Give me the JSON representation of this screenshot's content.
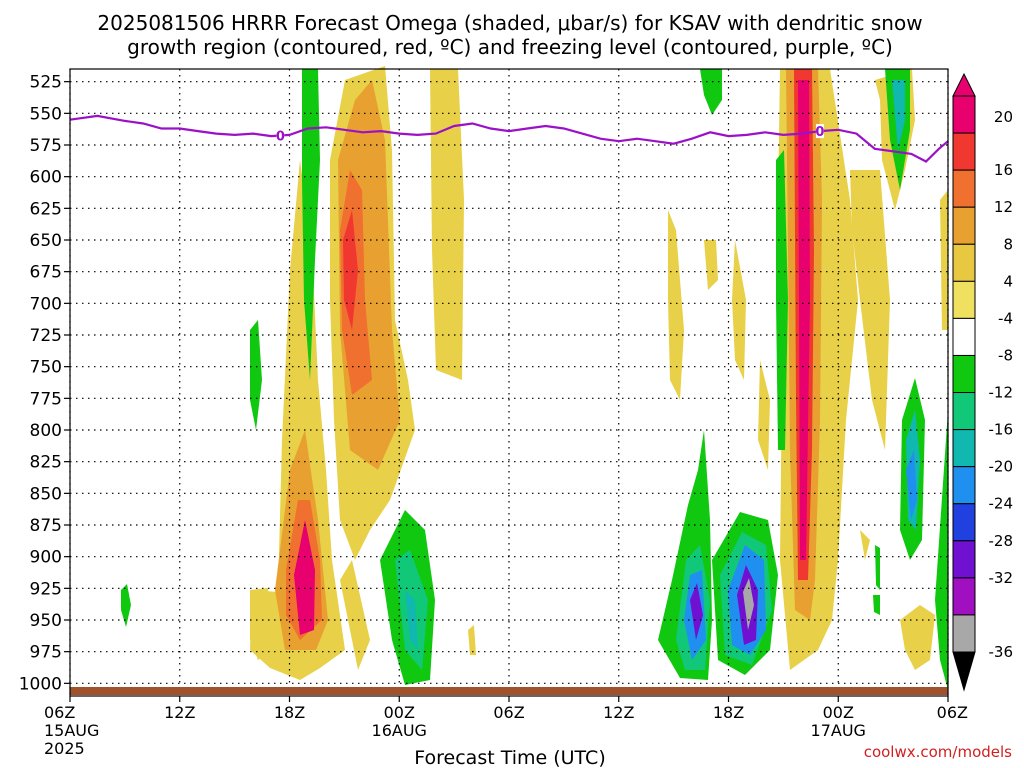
{
  "chart_data": {
    "type": "heatmap",
    "title_line1": "2025081506 HRRR Forecast Omega (shaded, μbar/s) for KSAV with dendritic snow",
    "title_line2": "growth region (contoured, red, ºC) and freezing level (contoured, purple, ºC)",
    "xlabel": "Forecast Time (UTC)",
    "credit": "coolwx.com/models",
    "y_axis": {
      "unit": "hPa",
      "inverted": true,
      "ylim": [
        1010,
        515
      ],
      "ticks": [
        "525",
        "550",
        "575",
        "600",
        "625",
        "650",
        "675",
        "700",
        "725",
        "750",
        "775",
        "800",
        "825",
        "850",
        "875",
        "900",
        "925",
        "950",
        "975",
        "1000"
      ]
    },
    "x_axis": {
      "unit": "forecast hour",
      "xlim": [
        0,
        48
      ],
      "ticks": [
        {
          "h": 0,
          "label": "06Z",
          "date": "15AUG",
          "year": "2025"
        },
        {
          "h": 6,
          "label": "12Z"
        },
        {
          "h": 12,
          "label": "18Z"
        },
        {
          "h": 18,
          "label": "00Z",
          "date": "16AUG"
        },
        {
          "h": 24,
          "label": "06Z"
        },
        {
          "h": 30,
          "label": "12Z"
        },
        {
          "h": 36,
          "label": "18Z"
        },
        {
          "h": 42,
          "label": "00Z",
          "date": "17AUG"
        },
        {
          "h": 48,
          "label": "06Z"
        }
      ]
    },
    "grid": true,
    "colorbar": {
      "labels": [
        "20",
        "16",
        "12",
        "8",
        "4",
        "-4",
        "-8",
        "-12",
        "-16",
        "-20",
        "-24",
        "-28",
        "-32",
        "-36"
      ],
      "colors": [
        "#e8006e",
        "#f03830",
        "#f07030",
        "#e8a030",
        "#e8c840",
        "#f0e060",
        "#ffffff",
        "#10c810",
        "#10c878",
        "#10b8b0",
        "#2090f0",
        "#2040e0",
        "#7010d0",
        "#a010c0",
        "#a8a8a8"
      ]
    },
    "freezing_level": {
      "label": "0",
      "label_hours": [
        11.5,
        41
      ],
      "points": [
        [
          0,
          555
        ],
        [
          1.5,
          552
        ],
        [
          3,
          556
        ],
        [
          4,
          558
        ],
        [
          5,
          562
        ],
        [
          6,
          562
        ],
        [
          7,
          564
        ],
        [
          8,
          566
        ],
        [
          9,
          567
        ],
        [
          10,
          566
        ],
        [
          11,
          568
        ],
        [
          12,
          567
        ],
        [
          13,
          562
        ],
        [
          14,
          561
        ],
        [
          15,
          563
        ],
        [
          16,
          565
        ],
        [
          17,
          564
        ],
        [
          18,
          566
        ],
        [
          19,
          567
        ],
        [
          20,
          566
        ],
        [
          21,
          560
        ],
        [
          22,
          558
        ],
        [
          23,
          562
        ],
        [
          24,
          564
        ],
        [
          25,
          562
        ],
        [
          26,
          560
        ],
        [
          27,
          562
        ],
        [
          28,
          566
        ],
        [
          29,
          570
        ],
        [
          30,
          572
        ],
        [
          31,
          570
        ],
        [
          32,
          572
        ],
        [
          33,
          574
        ],
        [
          34,
          570
        ],
        [
          35,
          565
        ],
        [
          36,
          568
        ],
        [
          37,
          567
        ],
        [
          38,
          565
        ],
        [
          39,
          567
        ],
        [
          40,
          566
        ],
        [
          41,
          564
        ],
        [
          42,
          563
        ],
        [
          43,
          566
        ],
        [
          44,
          578
        ],
        [
          45,
          580
        ],
        [
          46,
          582
        ],
        [
          46.8,
          588
        ],
        [
          47.5,
          578
        ],
        [
          48,
          572
        ]
      ]
    },
    "omega_features": [
      {
        "h": 12.2,
        "p": 898,
        "rh": 0.9,
        "rp": 48,
        "value": 20
      },
      {
        "h": 15.5,
        "p": 660,
        "rh": 0.65,
        "rp": 85,
        "value": 16
      },
      {
        "h": 40.4,
        "p": 680,
        "rh": 0.5,
        "rp": 250,
        "value": 20
      },
      {
        "h": 20.3,
        "p": 938,
        "rh": 1.2,
        "rp": 70,
        "value": -8
      },
      {
        "h": 34.2,
        "p": 920,
        "rh": 0.8,
        "rp": 55,
        "value": -24
      },
      {
        "h": 37.2,
        "p": 925,
        "rh": 1.1,
        "rp": 60,
        "value": -28
      },
      {
        "h": 45.9,
        "p": 810,
        "rh": 0.5,
        "rp": 45,
        "value": -16
      },
      {
        "h": 44.8,
        "p": 545,
        "rh": 0.4,
        "rp": 35,
        "value": -8
      }
    ]
  }
}
